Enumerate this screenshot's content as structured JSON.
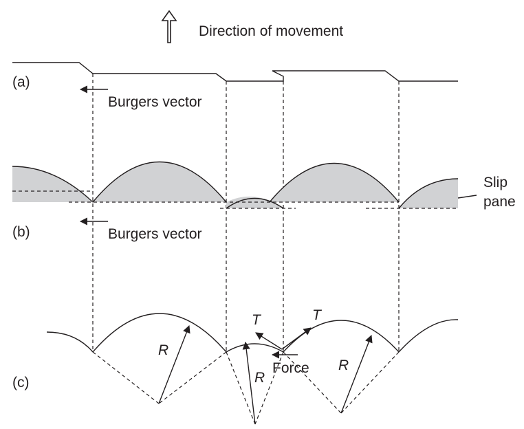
{
  "header": {
    "direction_label": "Direction of movement"
  },
  "panel_a": {
    "label": "(a)",
    "burgers_label": "Burgers vector"
  },
  "panel_b": {
    "label": "(b)",
    "burgers_label": "Burgers vector",
    "slip_label_line1": "Slip",
    "slip_label_line2": "pane"
  },
  "panel_c": {
    "label": "(c)",
    "radius_label": "R",
    "tension_label": "T",
    "force_label": "Force"
  },
  "colors": {
    "ink": "#231f20",
    "shade": "#d1d2d4"
  }
}
